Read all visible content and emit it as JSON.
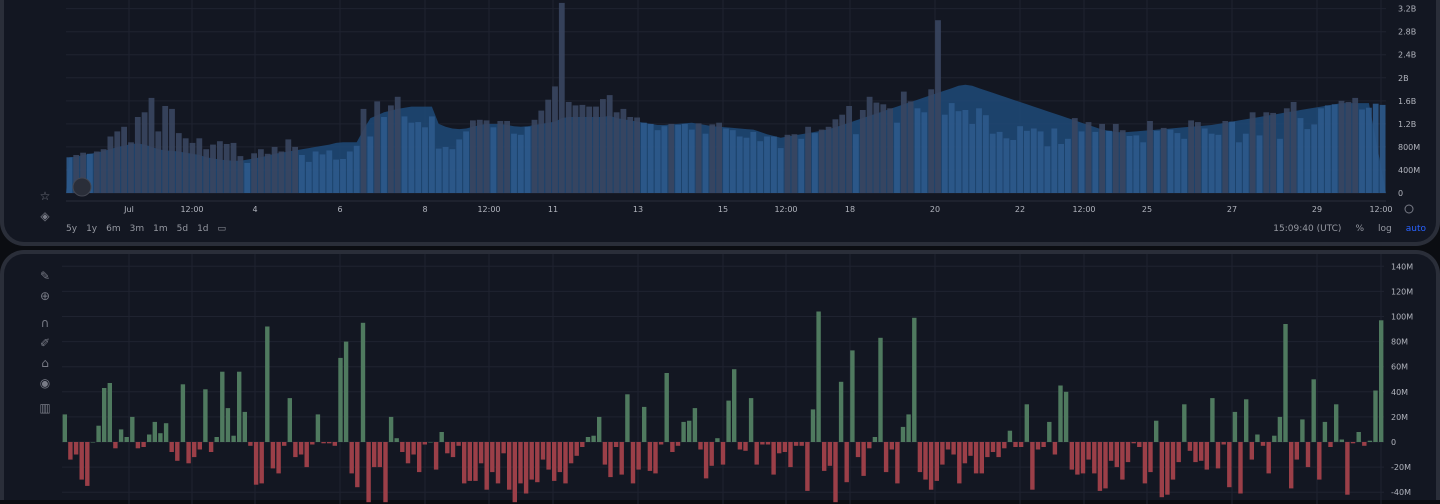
{
  "chart_data": [
    {
      "type": "bar",
      "ylim": [
        0,
        3300000000.0
      ],
      "yticks": [
        "0",
        "400M",
        "800M",
        "1.2B",
        "1.6B",
        "2B",
        "2.4B",
        "2.8B",
        "3.2B"
      ],
      "xticks": [
        "Jul",
        "12:00",
        "4",
        "6",
        "8",
        "12:00",
        "11",
        "13",
        "15",
        "12:00",
        "18",
        "20",
        "22",
        "12:00",
        "25",
        "27",
        "29",
        "12:00"
      ],
      "series": [
        {
          "values": [
            620,
            660,
            700,
            680,
            720,
            760,
            980,
            1070,
            1150,
            880,
            1320,
            1400,
            1650,
            1070,
            1510,
            1460,
            1040,
            950,
            870,
            950,
            760,
            840,
            900,
            850,
            870,
            640,
            520,
            690,
            760,
            680,
            800,
            720,
            930,
            800,
            660,
            540,
            720,
            670,
            740,
            580,
            590,
            720,
            820,
            1460,
            980,
            1590,
            1320,
            1520,
            1670,
            1330,
            1220,
            1230,
            1140,
            1330,
            770,
            800,
            760,
            930,
            1070,
            1260,
            1270,
            1260,
            1140,
            1250,
            1250,
            1030,
            1010,
            1150,
            1270,
            1430,
            1620,
            1850,
            3300,
            1580,
            1520,
            1530,
            1500,
            1500,
            1630,
            1700,
            1400,
            1460,
            1320,
            1310,
            1220,
            1200,
            1090,
            1160,
            1200,
            1180,
            1200,
            1100,
            1210,
            1030,
            1190,
            1220,
            1120,
            1090,
            980,
            960,
            1060,
            900,
            980,
            980,
            780,
            1010,
            1020,
            940,
            1150,
            1040,
            1100,
            1150,
            1280,
            1360,
            1510,
            1020,
            1440,
            1670,
            1570,
            1540,
            1470,
            1220,
            1760,
            1590,
            1470,
            1400,
            1800,
            3000,
            1360,
            1560,
            1420,
            1440,
            1200,
            1470,
            1350,
            1030,
            1060,
            950,
            920,
            1160,
            1080,
            1120,
            1070,
            810,
            1120,
            850,
            940,
            1300,
            1070,
            1230,
            1060,
            1200,
            1080,
            1200,
            1090,
            990,
            1000,
            880,
            1250,
            1080,
            1130,
            1100,
            1040,
            940,
            1260,
            1230,
            1120,
            1030,
            1010,
            1250,
            1240,
            880,
            1030,
            1400,
            1000,
            1400,
            1390,
            940,
            1470,
            1580,
            1300,
            1110,
            1190,
            1470,
            1520,
            1540,
            1600,
            1580,
            1650,
            1450,
            1480,
            1550,
            1530
          ],
          "color": "#2d5a8c"
        },
        {
          "values": [
            620,
            630,
            660,
            680,
            700,
            730,
            760,
            800,
            820,
            850,
            860,
            840,
            800,
            760,
            740,
            730,
            720,
            700,
            680,
            660,
            620,
            600,
            580,
            570,
            560,
            560,
            580,
            600,
            620,
            650,
            680,
            700,
            720,
            740,
            760,
            780,
            800,
            820,
            840,
            870,
            880,
            880,
            880,
            1100,
            1300,
            1350,
            1400,
            1430,
            1460,
            1480,
            1500,
            1500,
            1500,
            1500,
            1200,
            1150,
            1120,
            1110,
            1120,
            1150,
            1180,
            1200,
            1200,
            1200,
            1180,
            1160,
            1150,
            1160,
            1180,
            1200,
            1220,
            1240,
            1300,
            1320,
            1320,
            1320,
            1320,
            1320,
            1320,
            1340,
            1300,
            1280,
            1260,
            1240,
            1220,
            1200,
            1180,
            1180,
            1190,
            1200,
            1210,
            1220,
            1200,
            1180,
            1160,
            1150,
            1140,
            1130,
            1120,
            1110,
            1100,
            1060,
            1020,
            990,
            960,
            980,
            1000,
            1020,
            1040,
            1060,
            1080,
            1110,
            1140,
            1180,
            1220,
            1260,
            1300,
            1340,
            1380,
            1420,
            1460,
            1500,
            1540,
            1580,
            1620,
            1660,
            1700,
            1740,
            1780,
            1820,
            1860,
            1880,
            1860,
            1820,
            1780,
            1740,
            1700,
            1660,
            1620,
            1580,
            1540,
            1500,
            1460,
            1420,
            1380,
            1340,
            1300,
            1260,
            1220,
            1180,
            1140,
            1100,
            1080,
            1060,
            1050,
            1060,
            1070,
            1080,
            1090,
            1100,
            1110,
            1120,
            1130,
            1140,
            1150,
            1160,
            1170,
            1180,
            1200,
            1220,
            1240,
            1260,
            1280,
            1300,
            1320,
            1340,
            1360,
            1380,
            1400,
            1420,
            1440,
            1460,
            1480,
            1500,
            1520,
            1540,
            1560,
            1560,
            1560,
            1560,
            1560
          ],
          "color": "#2a5e9e"
        }
      ]
    },
    {
      "type": "bar",
      "ylim": [
        -48000000.0,
        140000000.0
      ],
      "yticks": [
        "-40M",
        "-20M",
        "0",
        "20M",
        "40M",
        "60M",
        "80M",
        "100M",
        "120M",
        "140M"
      ],
      "series": [
        {
          "values": [
            22,
            -14,
            -10,
            -30,
            -35,
            0,
            13,
            43,
            47,
            -5,
            10,
            4,
            20,
            -5,
            -4,
            6,
            16,
            7,
            15,
            -8,
            -15,
            46,
            -17,
            -12,
            -6,
            42,
            -8,
            4,
            56,
            27,
            5,
            56,
            24,
            -3,
            -34,
            -33,
            92,
            -21,
            -25,
            -3,
            35,
            -12,
            -10,
            -20,
            -2,
            22,
            -1,
            -1,
            -3,
            67,
            80,
            -25,
            -36,
            95,
            -48,
            -20,
            -20,
            -48,
            20,
            3,
            -8,
            -17,
            -10,
            -24,
            -2,
            0,
            -22,
            8,
            -9,
            -12,
            -3,
            -33,
            -31,
            -31,
            -17,
            -38,
            -24,
            -33,
            -9,
            -38,
            -48,
            -33,
            -41,
            -30,
            -32,
            -14,
            -22,
            -31,
            -24,
            -33,
            -17,
            -11,
            -4,
            4,
            5,
            20,
            -18,
            -28,
            -4,
            -26,
            38,
            -33,
            -22,
            28,
            -23,
            -25,
            -2,
            55,
            -8,
            -3,
            16,
            17,
            27,
            -6,
            -29,
            -19,
            3,
            -18,
            33,
            58,
            -6,
            -7,
            35,
            -18,
            -2,
            -2,
            -26,
            -9,
            -8,
            -20,
            -3,
            -3,
            -39,
            26,
            104,
            -23,
            -19,
            -48,
            48,
            -32,
            73,
            -12,
            -27,
            -5,
            4,
            83,
            -24,
            -6,
            -33,
            12,
            22,
            99,
            -24,
            -30,
            -38,
            -31,
            -18,
            -6,
            -10,
            -33,
            -17,
            -11,
            -25,
            -25,
            -12,
            -8,
            -12,
            -5,
            9,
            -4,
            -4,
            30,
            -38,
            -6,
            -4,
            16,
            -10,
            45,
            40,
            -22,
            -26,
            -25,
            -14,
            -25,
            -39,
            -37,
            -15,
            -20,
            -30,
            -16,
            -1,
            -4,
            -33,
            -24,
            17,
            -44,
            -42,
            -30,
            -16,
            30,
            -7,
            -16,
            -15,
            -22,
            35,
            -21,
            -2,
            -36,
            24,
            -41,
            34,
            -14,
            6,
            -3,
            -25,
            5,
            20,
            94,
            -37,
            -14,
            18,
            -20,
            50,
            -30,
            16,
            -4,
            30,
            2,
            -42,
            -1,
            8,
            -3,
            1,
            41,
            97
          ],
          "positive_color": "#4f7a5f",
          "negative_color": "#9b3f48"
        }
      ]
    }
  ],
  "toolbar": {
    "top_icons": [
      "star-icon",
      "layers-icon"
    ],
    "bottom_icons": [
      "ruler-icon",
      "zoom-in-icon",
      "magnet-icon",
      "pencil-lock-icon",
      "lock-icon",
      "eye-icon",
      "trash-icon"
    ]
  },
  "bottom_bar": {
    "ranges": [
      "5y",
      "1y",
      "6m",
      "3m",
      "1m",
      "5d",
      "1d"
    ],
    "time": "15:09:40 (UTC)",
    "percent": "%",
    "log": "log",
    "auto": "auto"
  },
  "colors": {
    "panel_bg": "#131722",
    "grid": "#1f2330",
    "area": "#1f4a78"
  }
}
